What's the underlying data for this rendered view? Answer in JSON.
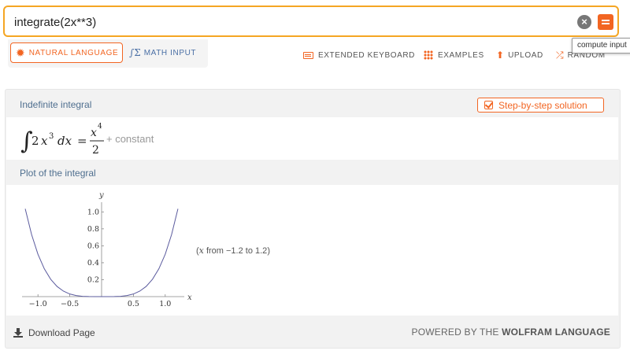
{
  "search": {
    "value": "integrate(2x**3)",
    "clear_icon": "clear-icon",
    "compute_icon": "equals-icon",
    "tooltip": "compute input"
  },
  "modes": {
    "natural_language": "NATURAL LANGUAGE",
    "math_input": "MATH INPUT"
  },
  "toolbar": {
    "extended_keyboard": "EXTENDED KEYBOARD",
    "examples": "EXAMPLES",
    "upload": "UPLOAD",
    "random": "RANDOM"
  },
  "pods": {
    "indefinite_integral": {
      "title": "Indefinite integral",
      "step_button": "Step-by-step solution",
      "formula": {
        "coef": "2",
        "var": "x",
        "exp": "3",
        "diff": "dx",
        "num_var": "x",
        "num_exp": "4",
        "den": "2",
        "constant": "+ constant"
      }
    },
    "plot": {
      "title": "Plot of the integral",
      "range_var": "x",
      "range_text": "from −1.2 to 1.2",
      "y_label": "y",
      "x_label": "x"
    }
  },
  "chart_data": {
    "type": "line",
    "function": "x^4/2",
    "x_range": [
      -1.2,
      1.2
    ],
    "xlim": [
      -1.25,
      1.25
    ],
    "ylim": [
      0,
      1.04
    ],
    "x_ticks": [
      -1.0,
      -0.5,
      0.5,
      1.0
    ],
    "x_tick_labels": [
      "−1.0",
      "−0.5",
      "0.5",
      "1.0"
    ],
    "y_ticks": [
      0.2,
      0.4,
      0.6,
      0.8,
      1.0
    ],
    "y_tick_labels": [
      "0.2",
      "0.4",
      "0.6",
      "0.8",
      "1.0"
    ],
    "series": [
      {
        "x": [
          -1.2,
          -1.1,
          -1.0,
          -0.9,
          -0.8,
          -0.7,
          -0.6,
          -0.5,
          -0.4,
          -0.3,
          -0.2,
          -0.1,
          0.0,
          0.1,
          0.2,
          0.3,
          0.4,
          0.5,
          0.6,
          0.7,
          0.8,
          0.9,
          1.0,
          1.1,
          1.2
        ],
        "y": [
          1.037,
          0.732,
          0.5,
          0.328,
          0.205,
          0.12,
          0.065,
          0.031,
          0.013,
          0.004,
          0.001,
          0.0,
          0.0,
          0.0,
          0.001,
          0.004,
          0.013,
          0.031,
          0.065,
          0.12,
          0.205,
          0.328,
          0.5,
          0.732,
          1.037
        ]
      }
    ],
    "line_color": "#5b5b9e",
    "grid": false
  },
  "footer": {
    "download": "Download Page",
    "powered_prefix": "POWERED BY THE ",
    "powered_brand": "WOLFRAM LANGUAGE"
  },
  "colors": {
    "accent": "#f26522",
    "search_border": "#f5a623",
    "pod_title": "#4f6f8f"
  }
}
